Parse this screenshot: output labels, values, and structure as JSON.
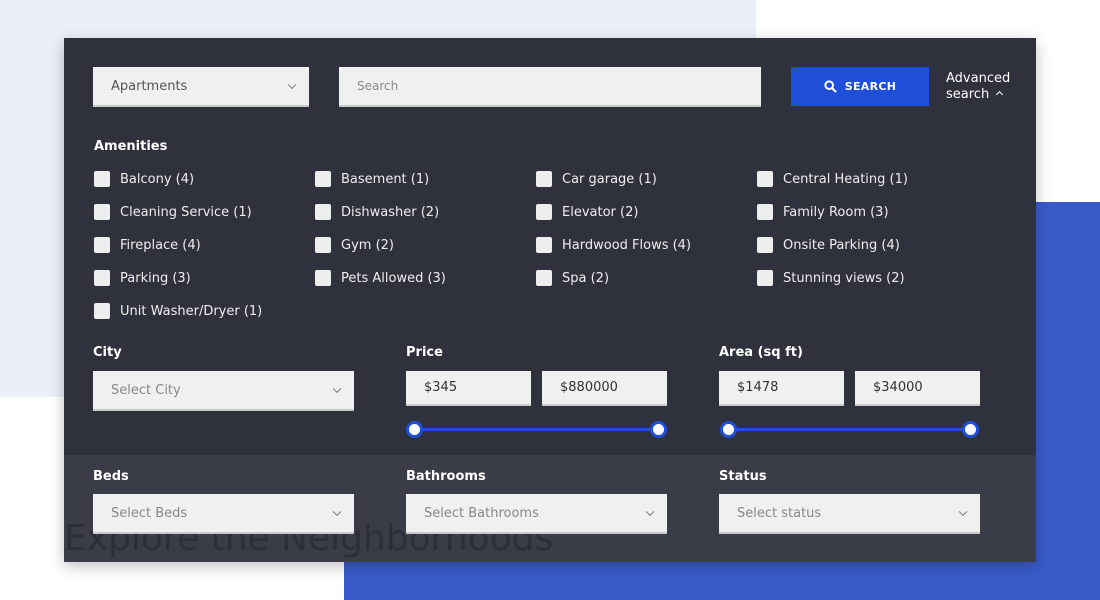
{
  "background_heading": "Explore the Neighborhoods",
  "type_select": {
    "value": "Apartments"
  },
  "search": {
    "placeholder": "Search",
    "button_label": "SEARCH",
    "advanced_line1": "Advanced",
    "advanced_line2": "search"
  },
  "amenities": {
    "title": "Amenities",
    "items": [
      "Balcony (4)",
      "Basement (1)",
      "Car garage (1)",
      "Central Heating (1)",
      "Cleaning Service (1)",
      "Dishwasher (2)",
      "Elevator (2)",
      "Family Room (3)",
      "Fireplace (4)",
      "Gym (2)",
      "Hardwood Flows (4)",
      "Onsite Parking (4)",
      "Parking (3)",
      "Pets Allowed (3)",
      "Spa (2)",
      "Stunning views (2)",
      "Unit Washer/Dryer (1)"
    ]
  },
  "city": {
    "label": "City",
    "placeholder": "Select City"
  },
  "price": {
    "label": "Price",
    "min": "$345",
    "max": "$880000"
  },
  "area": {
    "label": "Area (sq ft)",
    "min": "$1478",
    "max": "$34000"
  },
  "beds": {
    "label": "Beds",
    "placeholder": "Select Beds"
  },
  "bathrooms": {
    "label": "Bathrooms",
    "placeholder": "Select Bathrooms"
  },
  "status": {
    "label": "Status",
    "placeholder": "Select status"
  },
  "colors": {
    "accent": "#1f4fd8",
    "panel": "#2f323d",
    "block": "#3a5bc9"
  }
}
